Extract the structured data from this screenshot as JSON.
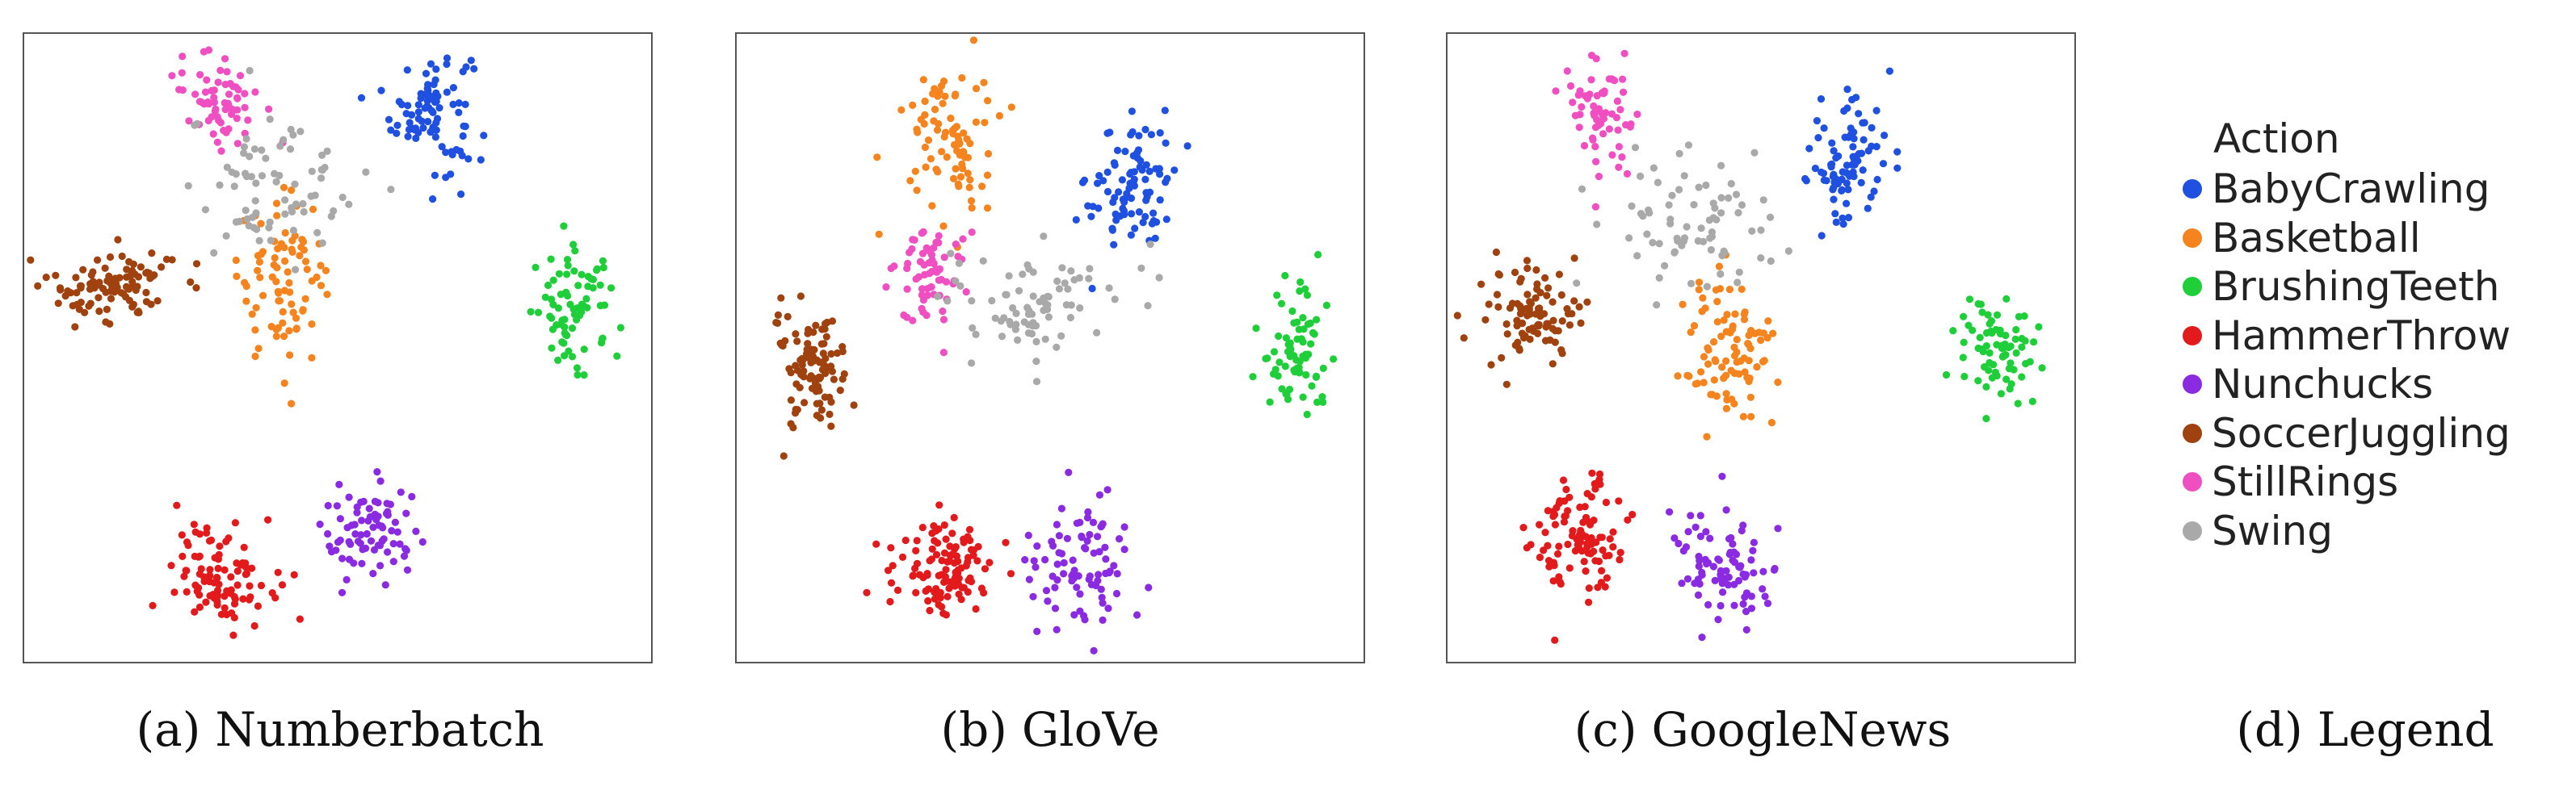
{
  "chart_data": [
    {
      "type": "scatter",
      "caption_letter": "(a)",
      "caption_name": "Numberbatch",
      "xlim": [
        0,
        100
      ],
      "ylim": [
        0,
        100
      ],
      "clusters": [
        {
          "series": "BabyCrawling",
          "cx": 65,
          "cy": 88,
          "sx": 3.2,
          "sy": 5.0,
          "n": 90
        },
        {
          "series": "Basketball",
          "cx": 41,
          "cy": 61,
          "sx": 3.5,
          "sy": 6.5,
          "n": 85
        },
        {
          "series": "BrushingTeeth",
          "cx": 88,
          "cy": 56,
          "sx": 3.5,
          "sy": 4.5,
          "n": 75
        },
        {
          "series": "HammerThrow",
          "cx": 32,
          "cy": 14,
          "sx": 4.0,
          "sy": 4.0,
          "n": 100
        },
        {
          "series": "Nunchucks",
          "cx": 55,
          "cy": 20,
          "sx": 4.0,
          "sy": 4.0,
          "n": 80
        },
        {
          "series": "SoccerJuggling",
          "cx": 14,
          "cy": 60,
          "sx": 5.0,
          "sy": 3.0,
          "n": 100
        },
        {
          "series": "StillRings",
          "cx": 31,
          "cy": 90,
          "sx": 3.5,
          "sy": 3.5,
          "n": 65
        },
        {
          "series": "Swing",
          "cx": 40,
          "cy": 76,
          "sx": 7.0,
          "sy": 6.5,
          "n": 75
        }
      ]
    },
    {
      "type": "scatter",
      "caption_letter": "(b)",
      "caption_name": "GloVe",
      "xlim": [
        0,
        100
      ],
      "ylim": [
        0,
        100
      ],
      "clusters": [
        {
          "series": "BabyCrawling",
          "cx": 63,
          "cy": 76,
          "sx": 3.5,
          "sy": 5.5,
          "n": 90
        },
        {
          "series": "Basketball",
          "cx": 34,
          "cy": 83,
          "sx": 3.5,
          "sy": 6.5,
          "n": 85
        },
        {
          "series": "BrushingTeeth",
          "cx": 89,
          "cy": 50,
          "sx": 3.0,
          "sy": 5.5,
          "n": 75
        },
        {
          "series": "HammerThrow",
          "cx": 33,
          "cy": 15,
          "sx": 4.0,
          "sy": 4.0,
          "n": 110
        },
        {
          "series": "Nunchucks",
          "cx": 55,
          "cy": 16,
          "sx": 4.5,
          "sy": 4.5,
          "n": 85
        },
        {
          "series": "SoccerJuggling",
          "cx": 11,
          "cy": 47,
          "sx": 3.0,
          "sy": 4.5,
          "n": 100
        },
        {
          "series": "StillRings",
          "cx": 31,
          "cy": 61,
          "sx": 3.0,
          "sy": 4.0,
          "n": 65
        },
        {
          "series": "Swing",
          "cx": 47,
          "cy": 57,
          "sx": 7.0,
          "sy": 4.5,
          "n": 80
        }
      ]
    },
    {
      "type": "scatter",
      "caption_letter": "(c)",
      "caption_name": "GoogleNews",
      "xlim": [
        0,
        100
      ],
      "ylim": [
        0,
        100
      ],
      "clusters": [
        {
          "series": "BabyCrawling",
          "cx": 64,
          "cy": 80,
          "sx": 3.5,
          "sy": 5.5,
          "n": 90
        },
        {
          "series": "Basketball",
          "cx": 45,
          "cy": 49,
          "sx": 3.5,
          "sy": 6.0,
          "n": 90
        },
        {
          "series": "BrushingTeeth",
          "cx": 88,
          "cy": 49,
          "sx": 3.2,
          "sy": 4.5,
          "n": 75
        },
        {
          "series": "HammerThrow",
          "cx": 21,
          "cy": 20,
          "sx": 3.8,
          "sy": 5.0,
          "n": 100
        },
        {
          "series": "Nunchucks",
          "cx": 44,
          "cy": 15,
          "sx": 4.0,
          "sy": 4.5,
          "n": 85
        },
        {
          "series": "SoccerJuggling",
          "cx": 13,
          "cy": 55,
          "sx": 4.0,
          "sy": 4.0,
          "n": 95
        },
        {
          "series": "StillRings",
          "cx": 24,
          "cy": 88,
          "sx": 3.0,
          "sy": 4.5,
          "n": 65
        },
        {
          "series": "Swing",
          "cx": 37,
          "cy": 70,
          "sx": 7.0,
          "sy": 5.5,
          "n": 75
        }
      ]
    }
  ],
  "legend": {
    "caption_letter": "(d)",
    "caption_name": "Legend",
    "title": "Action",
    "items": [
      {
        "label": "BabyCrawling",
        "color": "#1f50e0"
      },
      {
        "label": "Basketball",
        "color": "#f5841f"
      },
      {
        "label": "BrushingTeeth",
        "color": "#1fcf3a"
      },
      {
        "label": "HammerThrow",
        "color": "#e31a1c"
      },
      {
        "label": "Nunchucks",
        "color": "#8a2be2"
      },
      {
        "label": "SoccerJuggling",
        "color": "#a0420f"
      },
      {
        "label": "StillRings",
        "color": "#ef4fc0"
      },
      {
        "label": "Swing",
        "color": "#a9a9a9"
      }
    ]
  }
}
